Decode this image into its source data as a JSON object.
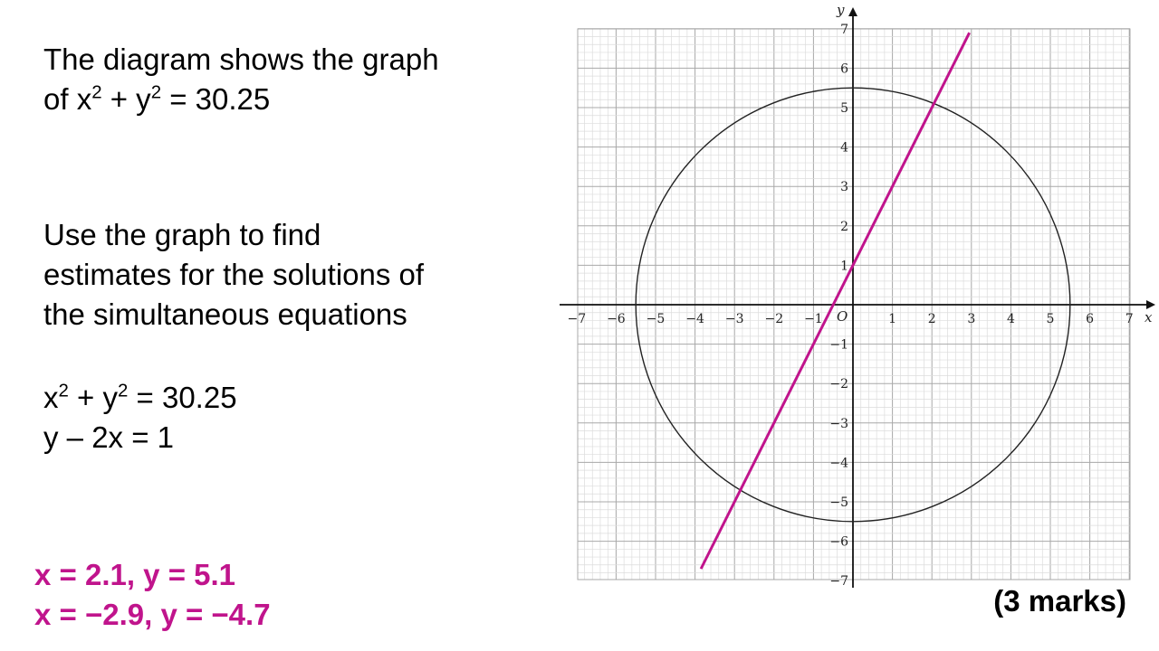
{
  "question": {
    "intro_line1": "The diagram shows the graph",
    "intro_line2_prefix": "of  x",
    "intro_line2_mid": " + y",
    "intro_line2_suffix": " = 30.25",
    "instruction_lines": [
      "Use the graph to find",
      "estimates for the solutions of",
      "the simultaneous equations"
    ],
    "eq1_prefix": "x",
    "eq1_mid": " + y",
    "eq1_suffix": " = 30.25",
    "eq2": "y – 2x = 1",
    "superscript": "2"
  },
  "answers": [
    "x = 2.1, y = 5.1",
    "x = −2.9, y = −4.7"
  ],
  "marks": "(3 marks)",
  "colors": {
    "accent": "#c0148c",
    "text": "#000000",
    "grid_major": "#a8a8a8",
    "grid_minor": "#dcdcdc",
    "curve": "#222222"
  },
  "chart_data": {
    "type": "line",
    "x_label": "x",
    "y_label": "y",
    "origin_label": "O",
    "xlim": [
      -7,
      7
    ],
    "ylim": [
      -7,
      7
    ],
    "x_ticks": [
      "−7",
      "−6",
      "−5",
      "−4",
      "−3",
      "−2",
      "−1",
      "1",
      "2",
      "3",
      "4",
      "5",
      "6",
      "7"
    ],
    "y_ticks": [
      "7",
      "6",
      "5",
      "4",
      "3",
      "2",
      "1",
      "−1",
      "−2",
      "−3",
      "−4",
      "−5",
      "−6",
      "−7"
    ],
    "grid": true,
    "minor_grid_per_unit": 5,
    "series": [
      {
        "kind": "circle",
        "equation": "x² + y² = 30.25",
        "radius": 5.5,
        "color": "#222222"
      },
      {
        "kind": "line",
        "equation": "y = 2x + 1",
        "slope": 2,
        "intercept": 1,
        "x_range": [
          -3.85,
          2.95
        ],
        "color": "#c0148c"
      }
    ]
  }
}
